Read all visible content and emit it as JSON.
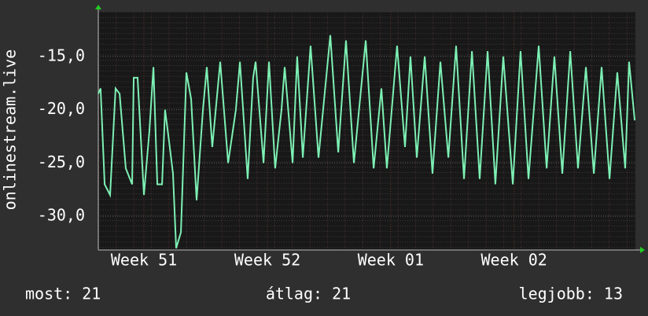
{
  "chart_data": {
    "type": "line",
    "ylabel": "onlinestream.live",
    "x": [
      0,
      0.13,
      0.36,
      0.67,
      0.98,
      1.21,
      1.56,
      1.92,
      2.01,
      2.23,
      2.59,
      2.9,
      3.13,
      3.35,
      3.62,
      3.79,
      4.02,
      4.24,
      4.42,
      4.69,
      5,
      5.27,
      5.58,
      5.94,
      6.16,
      6.47,
      6.92,
      7.37,
      7.81,
      8.04,
      8.48,
      8.79,
      8.93,
      9.38,
      9.69,
      10.04,
      10.4,
      10.58,
      11.03,
      11.29,
      11.61,
      12.05,
      12.5,
      13.17,
      13.62,
      14.06,
      14.51,
      15.18,
      15.63,
      16.07,
      16.38,
      16.96,
      17.41,
      17.72,
      18.08,
      18.53,
      18.97,
      19.42,
      19.87,
      20.31,
      20.76,
      21.21,
      21.65,
      22.1,
      22.54,
      22.99,
      23.53,
      23.97,
      24.42,
      25,
      25.45,
      25.89,
      26.34,
      26.79,
      27.23,
      27.68,
      28.13,
      28.57,
      29.02,
      29.46,
      29.91,
      30.13,
      30.45
    ],
    "series": [
      {
        "name": "onlinestream.live",
        "color": "#7df0b4",
        "values": [
          -18.5,
          -18,
          -27,
          -28,
          -18,
          -18.5,
          -25.5,
          -27,
          -17,
          -17,
          -28,
          -22,
          -16,
          -27,
          -27,
          -20,
          -23,
          -26,
          -33,
          -31.5,
          -16.5,
          -19,
          -28.5,
          -20,
          -16,
          -23.5,
          -15.5,
          -25,
          -20,
          -15.5,
          -26.5,
          -17,
          -15.5,
          -25,
          -15.5,
          -25.5,
          -20,
          -16,
          -25,
          -15,
          -24.5,
          -14,
          -24.5,
          -13,
          -24,
          -13.5,
          -25,
          -13.5,
          -25.5,
          -18,
          -25.5,
          -14,
          -23.5,
          -15,
          -24.5,
          -15,
          -26,
          -15.5,
          -24.5,
          -14,
          -26.5,
          -14.5,
          -26.5,
          -14.5,
          -27,
          -15,
          -27,
          -14.5,
          -26.5,
          -14,
          -25.5,
          -15,
          -26,
          -14.5,
          -25.5,
          -16,
          -26,
          -16,
          -26.5,
          -16.5,
          -25.5,
          -15.5,
          -21
        ]
      }
    ],
    "xlim": [
      0,
      30.49
    ],
    "xticks": [
      {
        "value": 2.59,
        "label": "Week 51"
      },
      {
        "value": 9.6,
        "label": "Week 52"
      },
      {
        "value": 16.6,
        "label": "Week 01"
      },
      {
        "value": 23.6,
        "label": "Week 02"
      }
    ],
    "ylim": [
      -33.16,
      -10.81
    ],
    "yticks": [
      {
        "value": -15,
        "label": "-15,0"
      },
      {
        "value": -20,
        "label": "-20,0"
      },
      {
        "value": -25,
        "label": "-25,0"
      },
      {
        "value": -30,
        "label": "-30,0"
      }
    ],
    "grid": true,
    "footer": [
      "most: 21",
      "átlag: 21",
      "legjobb: 13"
    ]
  }
}
